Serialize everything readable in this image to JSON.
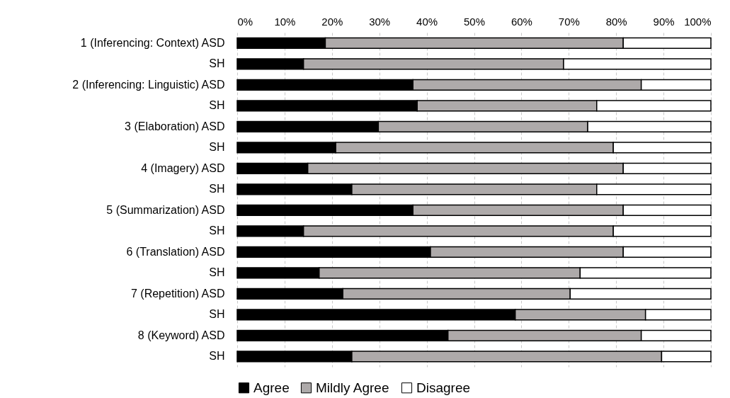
{
  "chart_data": {
    "type": "bar",
    "orientation": "horizontal",
    "stacked": true,
    "categories": [
      "1 (Inferencing: Context)  ASD",
      "SH",
      "2 (Inferencing: Linguistic)  ASD",
      "SH",
      "3 (Elaboration)  ASD",
      "SH",
      "4 (Imagery)  ASD",
      "SH",
      "5 (Summarization)  ASD",
      "SH",
      "6 (Translation)  ASD",
      "SH",
      "7 (Repetition)  ASD",
      "SH",
      "8 (Keyword)  ASD",
      "SH"
    ],
    "series": [
      {
        "name": "Agree",
        "color": "#000000",
        "values": [
          18.6,
          14.0,
          37.1,
          38.0,
          29.8,
          20.8,
          14.9,
          24.2,
          37.1,
          14.0,
          40.8,
          17.3,
          22.3,
          58.7,
          44.5,
          24.2
        ]
      },
      {
        "name": "Mildly Agree",
        "color": "#aeaaaa",
        "values": [
          62.9,
          54.9,
          48.2,
          37.9,
          44.2,
          58.6,
          66.6,
          51.7,
          44.4,
          65.4,
          40.7,
          55.1,
          48.0,
          27.5,
          40.8,
          65.4
        ]
      },
      {
        "name": "Disagree",
        "color": "#ffffff",
        "values": [
          18.5,
          31.1,
          14.7,
          24.1,
          26.0,
          20.6,
          18.5,
          24.1,
          18.5,
          20.6,
          18.5,
          27.6,
          29.7,
          13.8,
          14.7,
          10.4
        ]
      }
    ],
    "xlim": [
      0,
      100
    ],
    "xticks": [
      {
        "value": 0,
        "label": "0%"
      },
      {
        "value": 10,
        "label": "10%"
      },
      {
        "value": 20,
        "label": "20%"
      },
      {
        "value": 30,
        "label": "30%"
      },
      {
        "value": 40,
        "label": "40%"
      },
      {
        "value": 50,
        "label": "50%"
      },
      {
        "value": 60,
        "label": "60%"
      },
      {
        "value": 70,
        "label": "70%"
      },
      {
        "value": 80,
        "label": "80%"
      },
      {
        "value": 90,
        "label": "90%"
      },
      {
        "value": 100,
        "label": "100%"
      }
    ],
    "grid": "x",
    "legend": "bottom"
  }
}
